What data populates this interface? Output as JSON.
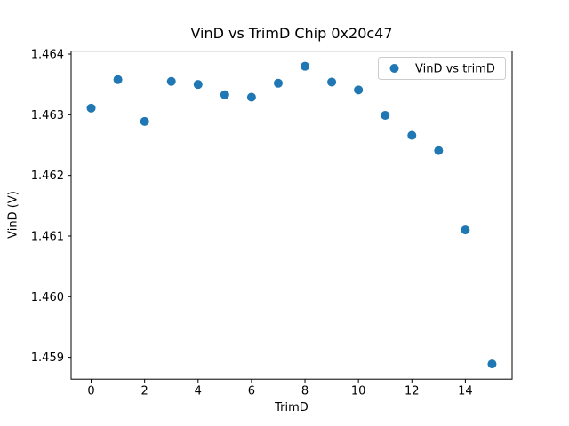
{
  "chart_data": {
    "type": "scatter",
    "title": "VinD vs TrimD Chip 0x20c47",
    "xlabel": "TrimD",
    "ylabel": "VinD (V)",
    "series": [
      {
        "name": "VinD vs trimD",
        "marker_color": "#1f77b4",
        "x": [
          0,
          1,
          2,
          3,
          4,
          5,
          6,
          7,
          8,
          9,
          10,
          11,
          12,
          13,
          14,
          15
        ],
        "y": [
          1.46311,
          1.46358,
          1.46289,
          1.46355,
          1.4635,
          1.46333,
          1.46329,
          1.46352,
          1.4638,
          1.46354,
          1.46341,
          1.46299,
          1.46266,
          1.46241,
          1.4611,
          1.45889
        ]
      }
    ],
    "xlim": [
      -0.75,
      15.75
    ],
    "ylim": [
      1.45864,
      1.46405
    ],
    "xticks": [
      0,
      2,
      4,
      6,
      8,
      10,
      12,
      14
    ],
    "yticks": [
      1.459,
      1.46,
      1.461,
      1.462,
      1.463,
      1.464
    ],
    "ytick_decimals": 3,
    "grid": false,
    "legend": {
      "position": "upper right",
      "entries": [
        "VinD vs trimD"
      ],
      "border_color": "#cccccc",
      "background": "#ffffff"
    },
    "colors": {
      "axes_edge": "#000000",
      "tick_label": "#000000",
      "figure_background": "#ffffff"
    }
  }
}
